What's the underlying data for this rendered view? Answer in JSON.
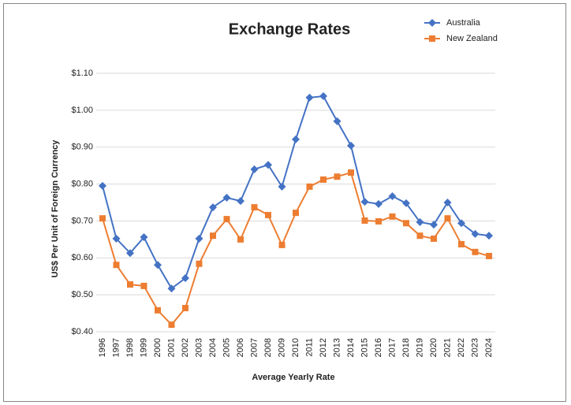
{
  "chart_data": {
    "type": "line",
    "title": "Exchange Rates",
    "x_label": "Average Yearly Rate",
    "y_label": "US$ Per Unit of Foreign Currency",
    "categories": [
      "1996",
      "1997",
      "1998",
      "1999",
      "2000",
      "2001",
      "2002",
      "2003",
      "2004",
      "2005",
      "2006",
      "2007",
      "2008",
      "2009",
      "2010",
      "2011",
      "2012",
      "2013",
      "2014",
      "2015",
      "2016",
      "2017",
      "2018",
      "2019",
      "2020",
      "2021",
      "2022",
      "2023",
      "2024"
    ],
    "series": [
      {
        "name": "Australia",
        "color": "#4472c4",
        "marker": "diamond",
        "values": [
          0.795,
          0.652,
          0.613,
          0.656,
          0.581,
          0.517,
          0.545,
          0.652,
          0.737,
          0.763,
          0.754,
          0.84,
          0.852,
          0.793,
          0.921,
          1.034,
          1.038,
          0.97,
          0.904,
          0.752,
          0.746,
          0.767,
          0.748,
          0.697,
          0.69,
          0.75,
          0.694,
          0.665,
          0.66
        ]
      },
      {
        "name": "New Zealand",
        "color": "#ed7d31",
        "marker": "square",
        "values": [
          0.707,
          0.581,
          0.528,
          0.524,
          0.458,
          0.419,
          0.464,
          0.584,
          0.66,
          0.705,
          0.65,
          0.737,
          0.716,
          0.635,
          0.722,
          0.793,
          0.812,
          0.82,
          0.831,
          0.701,
          0.699,
          0.712,
          0.694,
          0.66,
          0.652,
          0.707,
          0.637,
          0.616,
          0.605
        ]
      }
    ],
    "ylim": [
      0.4,
      1.1
    ],
    "yticks": [
      {
        "value": 0.4,
        "label": "$0.40"
      },
      {
        "value": 0.5,
        "label": "$0.50"
      },
      {
        "value": 0.6,
        "label": "$0.60"
      },
      {
        "value": 0.7,
        "label": "$0.70"
      },
      {
        "value": 0.8,
        "label": "$0.80"
      },
      {
        "value": 0.9,
        "label": "$0.90"
      },
      {
        "value": 1.0,
        "label": "$1.00"
      },
      {
        "value": 1.1,
        "label": "$1.10"
      }
    ],
    "grid": true,
    "legend": "top-right"
  }
}
